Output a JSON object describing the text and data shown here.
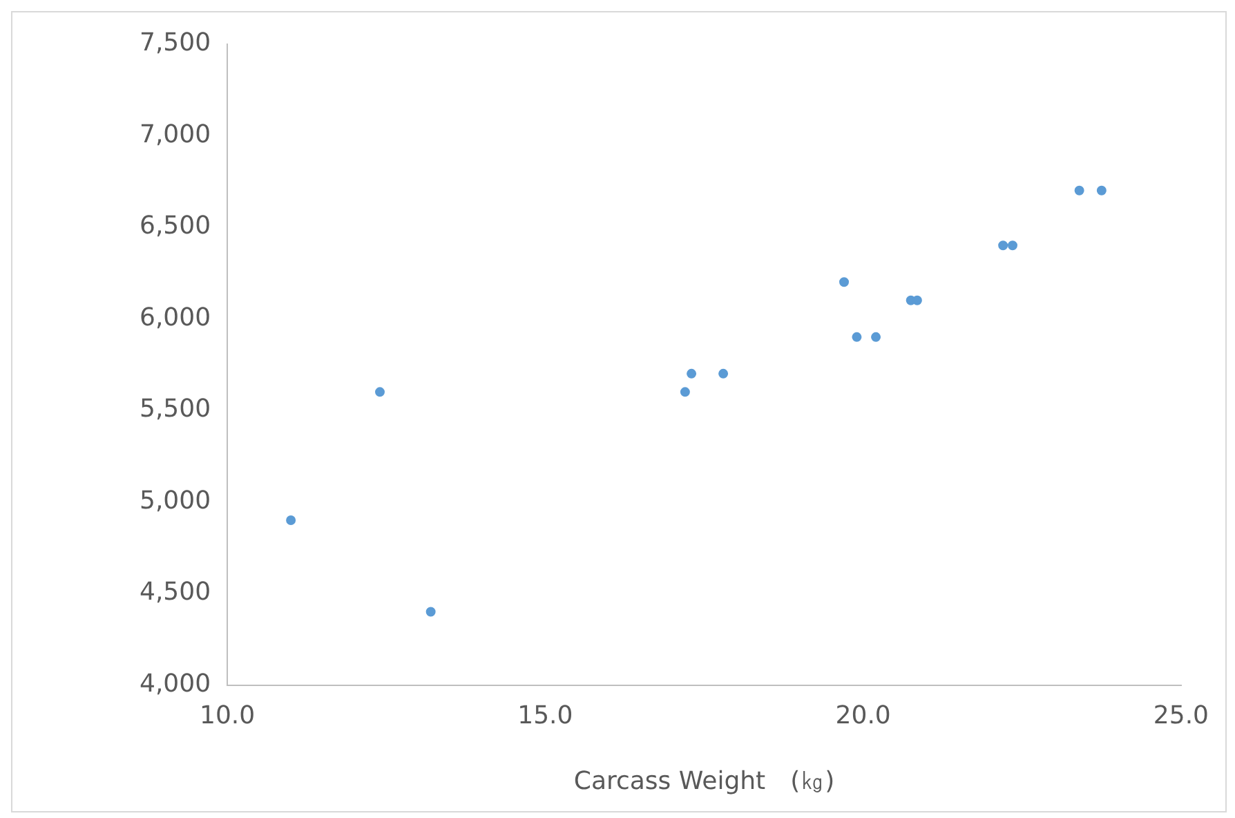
{
  "chart_data": {
    "type": "scatter",
    "xlabel": "Carcass Weight　(㎏)",
    "x": [
      11.0,
      12.4,
      13.2,
      17.2,
      17.3,
      17.8,
      19.7,
      19.9,
      20.2,
      20.75,
      20.85,
      22.2,
      22.35,
      23.4,
      23.75
    ],
    "series": [
      {
        "color": "#5b9bd5",
        "values": [
          4900,
          5600,
          4400,
          5600,
          5700,
          5700,
          6200,
          5900,
          5900,
          6100,
          6100,
          6400,
          6400,
          6700,
          6700
        ]
      }
    ],
    "xlim": [
      10,
      25
    ],
    "xticks": [
      {
        "value": 10,
        "label": "10.0"
      },
      {
        "value": 15,
        "label": "15.0"
      },
      {
        "value": 20,
        "label": "20.0"
      },
      {
        "value": 25,
        "label": "25.0"
      }
    ],
    "ylim": [
      4000,
      7500
    ],
    "yticks": [
      {
        "value": 4000,
        "label": "4,000"
      },
      {
        "value": 4500,
        "label": "4,500"
      },
      {
        "value": 5000,
        "label": "5,000"
      },
      {
        "value": 5500,
        "label": "5,500"
      },
      {
        "value": 6000,
        "label": "6,000"
      },
      {
        "value": 6500,
        "label": "6,500"
      },
      {
        "value": 7000,
        "label": "7,000"
      },
      {
        "value": 7500,
        "label": "7,500"
      }
    ],
    "grid": false,
    "legend": false,
    "marker": "circle"
  }
}
